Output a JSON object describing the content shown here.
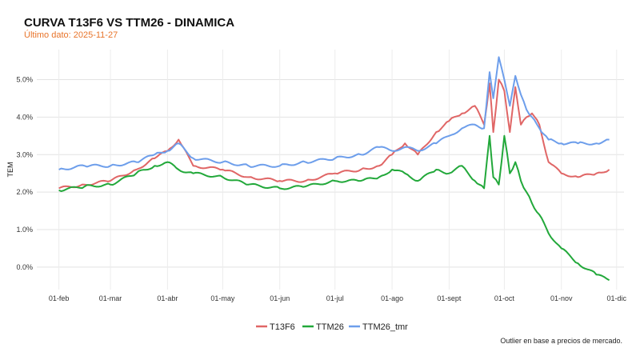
{
  "chart_data": {
    "type": "line",
    "title": "CURVA T13F6 VS TTM26 - DINAMICA",
    "subtitle": "Último dato: 2025-11-27",
    "ylabel": "TEM",
    "xlabel": "",
    "x_range": [
      "2025-01-20",
      "2025-12-05"
    ],
    "ylim": [
      -0.6,
      5.8
    ],
    "y_ticks": [
      0,
      1,
      2,
      3,
      4,
      5
    ],
    "y_tick_labels": [
      "0.0%",
      "1.0%",
      "2.0%",
      "3.0%",
      "4.0%",
      "5.0%"
    ],
    "x_ticks": [
      "2025-02-01",
      "2025-03-01",
      "2025-04-01",
      "2025-05-01",
      "2025-06-01",
      "2025-07-01",
      "2025-08-01",
      "2025-09-01",
      "2025-10-01",
      "2025-11-01",
      "2025-12-01"
    ],
    "x_tick_labels": [
      "01-feb",
      "01-mar",
      "01-abr",
      "01-may",
      "01-jun",
      "01-jul",
      "01-ago",
      "01-sept",
      "01-oct",
      "01-nov",
      "01-dic"
    ],
    "grid": true,
    "legend_position": "bottom",
    "caption": "Outlier en base a precios de mercado.",
    "series": [
      {
        "name": "T13F6",
        "color": "#e06666",
        "x": [
          "2025-02-01",
          "2025-02-15",
          "2025-03-01",
          "2025-03-15",
          "2025-03-25",
          "2025-04-01",
          "2025-04-07",
          "2025-04-15",
          "2025-05-01",
          "2025-05-15",
          "2025-06-01",
          "2025-06-15",
          "2025-07-01",
          "2025-07-15",
          "2025-07-25",
          "2025-08-01",
          "2025-08-08",
          "2025-08-15",
          "2025-08-25",
          "2025-09-01",
          "2025-09-08",
          "2025-09-15",
          "2025-09-20",
          "2025-09-23",
          "2025-09-25",
          "2025-09-28",
          "2025-10-01",
          "2025-10-04",
          "2025-10-07",
          "2025-10-10",
          "2025-10-13",
          "2025-10-16",
          "2025-10-20",
          "2025-10-25",
          "2025-11-01",
          "2025-11-10",
          "2025-11-20",
          "2025-11-27"
        ],
        "values": [
          2.1,
          2.2,
          2.3,
          2.6,
          2.9,
          3.1,
          3.4,
          2.7,
          2.6,
          2.4,
          2.3,
          2.3,
          2.5,
          2.6,
          2.7,
          3.0,
          3.3,
          3.0,
          3.6,
          3.9,
          4.1,
          4.3,
          3.8,
          4.9,
          3.6,
          5.0,
          4.7,
          3.6,
          4.8,
          3.8,
          4.0,
          4.1,
          3.8,
          2.8,
          2.5,
          2.4,
          2.5,
          2.6
        ]
      },
      {
        "name": "TTM26",
        "color": "#22a83a",
        "x": [
          "2025-02-01",
          "2025-02-15",
          "2025-03-01",
          "2025-03-15",
          "2025-03-25",
          "2025-04-01",
          "2025-04-07",
          "2025-04-15",
          "2025-05-01",
          "2025-05-15",
          "2025-06-01",
          "2025-06-15",
          "2025-07-01",
          "2025-07-15",
          "2025-07-25",
          "2025-08-01",
          "2025-08-08",
          "2025-08-15",
          "2025-08-25",
          "2025-09-01",
          "2025-09-08",
          "2025-09-15",
          "2025-09-20",
          "2025-09-23",
          "2025-09-25",
          "2025-09-28",
          "2025-10-01",
          "2025-10-04",
          "2025-10-07",
          "2025-10-10",
          "2025-10-13",
          "2025-10-16",
          "2025-10-20",
          "2025-10-25",
          "2025-11-01",
          "2025-11-10",
          "2025-11-20",
          "2025-11-27"
        ],
        "values": [
          2.05,
          2.15,
          2.2,
          2.5,
          2.7,
          2.8,
          2.6,
          2.5,
          2.4,
          2.2,
          2.1,
          2.15,
          2.3,
          2.3,
          2.4,
          2.6,
          2.5,
          2.3,
          2.6,
          2.5,
          2.7,
          2.3,
          2.1,
          3.5,
          2.4,
          2.2,
          3.5,
          2.5,
          2.8,
          2.3,
          2.0,
          1.7,
          1.4,
          0.9,
          0.5,
          0.1,
          -0.2,
          -0.35
        ]
      },
      {
        "name": "TTM26_tmr",
        "color": "#6d9eeb",
        "x": [
          "2025-02-01",
          "2025-02-15",
          "2025-03-01",
          "2025-03-15",
          "2025-03-25",
          "2025-04-01",
          "2025-04-07",
          "2025-04-15",
          "2025-05-01",
          "2025-05-15",
          "2025-06-01",
          "2025-06-15",
          "2025-07-01",
          "2025-07-15",
          "2025-07-25",
          "2025-08-01",
          "2025-08-08",
          "2025-08-15",
          "2025-08-25",
          "2025-09-01",
          "2025-09-08",
          "2025-09-15",
          "2025-09-20",
          "2025-09-23",
          "2025-09-25",
          "2025-09-28",
          "2025-10-01",
          "2025-10-04",
          "2025-10-07",
          "2025-10-10",
          "2025-10-13",
          "2025-10-16",
          "2025-10-20",
          "2025-10-25",
          "2025-11-01",
          "2025-11-10",
          "2025-11-20",
          "2025-11-27"
        ],
        "values": [
          2.6,
          2.7,
          2.7,
          2.8,
          3.0,
          3.1,
          3.3,
          2.9,
          2.8,
          2.7,
          2.7,
          2.8,
          2.9,
          3.0,
          3.2,
          3.1,
          3.2,
          3.1,
          3.3,
          3.5,
          3.7,
          3.8,
          3.7,
          5.2,
          4.5,
          5.6,
          5.0,
          4.3,
          5.1,
          4.6,
          4.2,
          4.0,
          3.7,
          3.4,
          3.3,
          3.3,
          3.3,
          3.4
        ]
      }
    ]
  }
}
